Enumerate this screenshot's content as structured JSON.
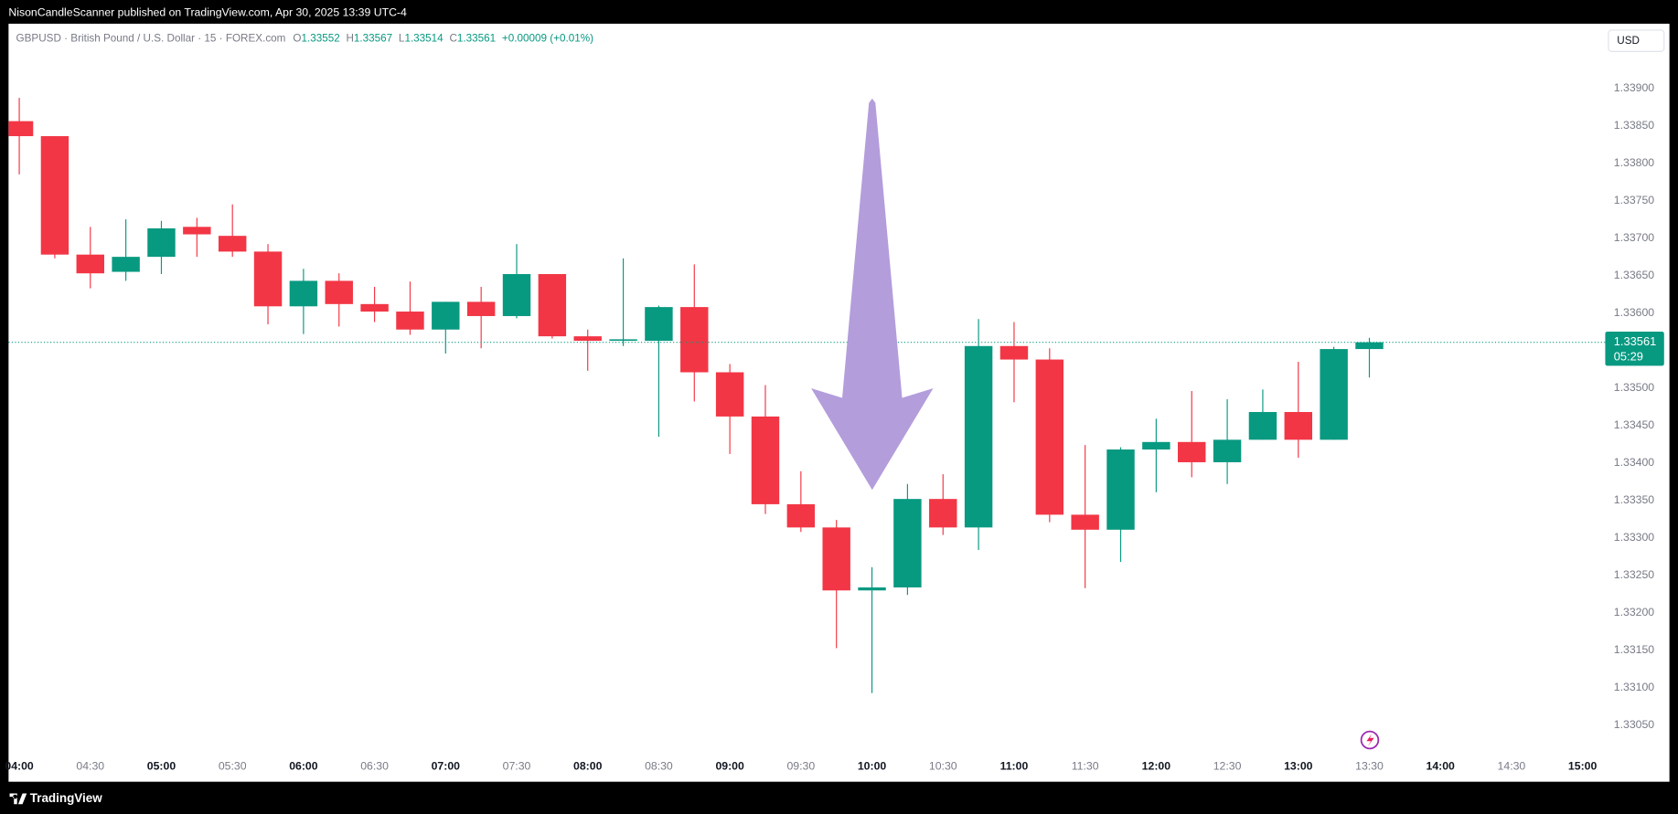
{
  "header": {
    "publisher": "NisonCandleScanner published on TradingView.com, Apr 30, 2025 13:39 UTC-4",
    "symbol": "GBPUSD · British Pound / U.S. Dollar · 15 · FOREX.com",
    "ohlc_labels": [
      "O",
      "H",
      "L",
      "C"
    ],
    "change": "+0.00009 (+0.01%)",
    "currency": "USD",
    "countdown": "05:29",
    "footer": "TradingView"
  },
  "chart_data": {
    "type": "candlestick",
    "up_color": "#089981",
    "down_color": "#f23645",
    "grid": false,
    "last_price_line": true,
    "categories": [
      "04:00",
      null,
      "04:30",
      null,
      "05:00",
      null,
      "05:30",
      null,
      "06:00",
      null,
      "06:30",
      null,
      "07:00",
      null,
      "07:30",
      null,
      "08:00",
      null,
      "08:30",
      null,
      "09:00",
      null,
      "09:30",
      null,
      "10:00",
      null,
      "10:30",
      null,
      "11:00",
      null,
      "11:30",
      null,
      "12:00",
      null,
      "12:30",
      null,
      "13:00",
      null,
      "13:30",
      null,
      "14:00",
      null,
      "14:30",
      null,
      "15:00"
    ],
    "open": [
      1.33856,
      1.33836,
      1.33678,
      1.33655,
      1.33675,
      1.33715,
      1.33703,
      1.33682,
      1.33609,
      1.33643,
      1.33612,
      1.33602,
      1.33578,
      1.33615,
      1.33596,
      1.33652,
      1.33569,
      1.33563,
      1.33563,
      1.33608,
      1.33521,
      1.33462,
      1.33345,
      1.33314,
      1.3323,
      1.33234,
      1.33352,
      1.33314,
      1.33556,
      1.33538,
      1.33331,
      1.33311,
      1.33418,
      1.33428,
      1.33401,
      1.33431,
      1.33468,
      1.33431,
      1.33552,
      null,
      null,
      null,
      null,
      null,
      null
    ],
    "high": [
      1.33887,
      1.33836,
      1.33715,
      1.33725,
      1.33723,
      1.33727,
      1.33745,
      1.33692,
      1.33659,
      1.33653,
      1.33635,
      1.33642,
      1.33615,
      1.33635,
      1.33692,
      1.33652,
      1.33578,
      1.33673,
      1.3361,
      1.33665,
      1.33532,
      1.33504,
      1.33389,
      1.33324,
      1.33261,
      1.33372,
      1.33385,
      1.33592,
      1.33588,
      1.33553,
      1.33424,
      1.33421,
      1.33459,
      1.33496,
      1.33485,
      1.33498,
      1.33535,
      1.33555,
      1.33567,
      null,
      null,
      null,
      null,
      null,
      null
    ],
    "low": [
      1.33785,
      1.33673,
      1.33633,
      1.33643,
      1.33652,
      1.33675,
      1.33675,
      1.33585,
      1.33572,
      1.33582,
      1.33588,
      1.33571,
      1.33546,
      1.33553,
      1.33593,
      1.33566,
      1.33523,
      1.33556,
      1.33435,
      1.33482,
      1.33412,
      1.33332,
      1.33308,
      1.33153,
      1.33093,
      1.33224,
      1.33304,
      1.33284,
      1.33481,
      1.33321,
      1.33233,
      1.33268,
      1.33361,
      1.33381,
      1.33372,
      1.33431,
      1.33407,
      1.33431,
      1.33514,
      null,
      null,
      null,
      null,
      null,
      null
    ],
    "close": [
      1.33836,
      1.33678,
      1.33653,
      1.33675,
      1.33713,
      1.33705,
      1.33682,
      1.33609,
      1.33643,
      1.33612,
      1.33602,
      1.33578,
      1.33615,
      1.33596,
      1.33652,
      1.33569,
      1.33563,
      1.33565,
      1.33608,
      1.33521,
      1.33462,
      1.33345,
      1.33314,
      1.3323,
      1.33234,
      1.33352,
      1.33314,
      1.33556,
      1.33538,
      1.33331,
      1.33311,
      1.33418,
      1.33428,
      1.33401,
      1.33431,
      1.33468,
      1.33431,
      1.33552,
      1.33561,
      null,
      null,
      null,
      null,
      null,
      null
    ],
    "ylim": [
      1.33019,
      1.33986
    ],
    "yticks": [
      {
        "value": 1.3305,
        "label": "1.33050"
      },
      {
        "value": 1.331,
        "label": "1.33100"
      },
      {
        "value": 1.3315,
        "label": "1.33150"
      },
      {
        "value": 1.332,
        "label": "1.33200"
      },
      {
        "value": 1.3325,
        "label": "1.33250"
      },
      {
        "value": 1.333,
        "label": "1.33300"
      },
      {
        "value": 1.3335,
        "label": "1.33350"
      },
      {
        "value": 1.334,
        "label": "1.33400"
      },
      {
        "value": 1.3345,
        "label": "1.33450"
      },
      {
        "value": 1.335,
        "label": "1.33500"
      },
      {
        "value": 1.3355,
        "label": "1.33550"
      },
      {
        "value": 1.336,
        "label": "1.33600"
      },
      {
        "value": 1.3365,
        "label": "1.33650"
      },
      {
        "value": 1.337,
        "label": "1.33700"
      },
      {
        "value": 1.3375,
        "label": "1.33750"
      },
      {
        "value": 1.338,
        "label": "1.33800"
      },
      {
        "value": 1.3385,
        "label": "1.33850"
      },
      {
        "value": 1.339,
        "label": "1.33900"
      }
    ]
  }
}
